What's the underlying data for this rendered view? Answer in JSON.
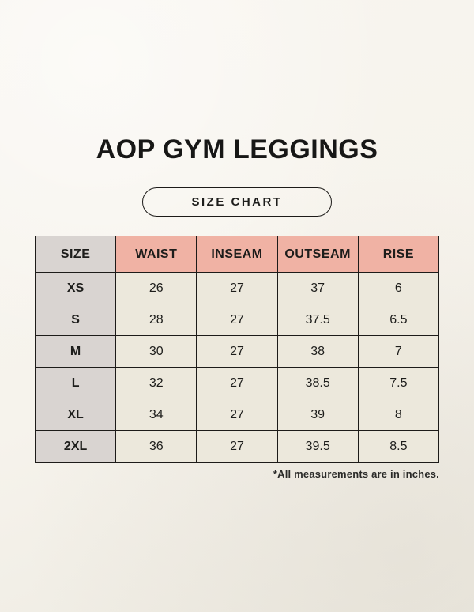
{
  "page": {
    "title": "AOP GYM LEGGINGS",
    "badge_label": "SIZE CHART",
    "footnote": "*All measurements are in inches."
  },
  "colors": {
    "background": "#f6f3ec",
    "header_size_bg": "#d9d4d1",
    "header_measure_bg": "#f0b2a4",
    "row_label_bg": "#d9d4d1",
    "value_cell_bg": "#ece8dc",
    "border": "#1d1b19",
    "text": "#1d1d1b"
  },
  "chart_data": {
    "type": "table",
    "title": "AOP GYM LEGGINGS",
    "subtitle": "SIZE CHART",
    "units": "inches",
    "footnote": "*All measurements are in inches.",
    "columns": [
      "SIZE",
      "WAIST",
      "INSEAM",
      "OUTSEAM",
      "RISE"
    ],
    "rows": [
      [
        "XS",
        "26",
        "27",
        "37",
        "6"
      ],
      [
        "S",
        "28",
        "27",
        "37.5",
        "6.5"
      ],
      [
        "M",
        "30",
        "27",
        "38",
        "7"
      ],
      [
        "L",
        "32",
        "27",
        "38.5",
        "7.5"
      ],
      [
        "XL",
        "34",
        "27",
        "39",
        "8"
      ],
      [
        "2XL",
        "36",
        "27",
        "39.5",
        "8.5"
      ]
    ]
  }
}
